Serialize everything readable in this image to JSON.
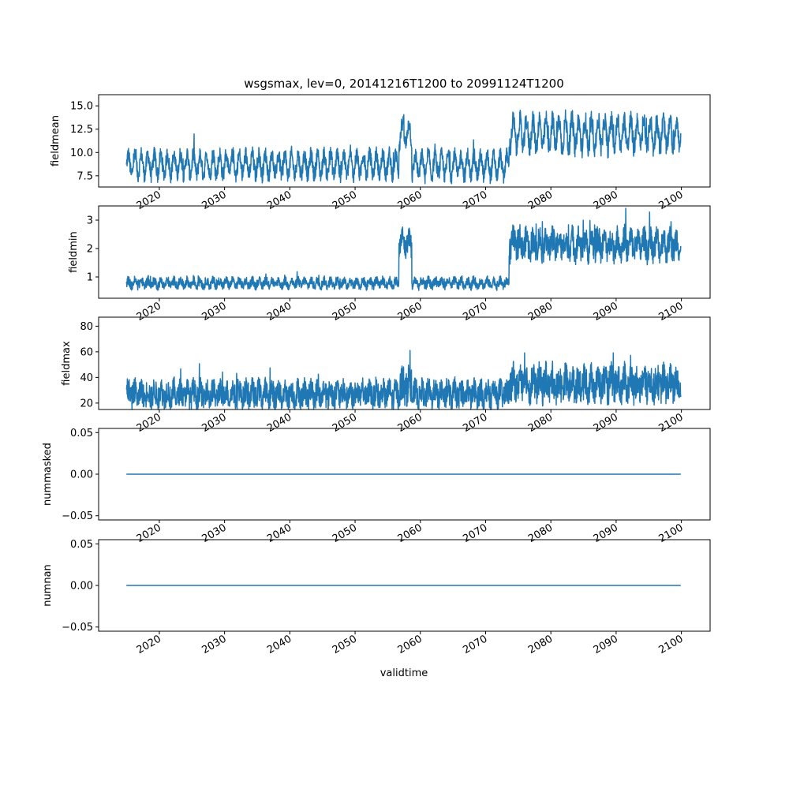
{
  "chart_data": {
    "type": "line",
    "title": "wsgsmax, lev=0, 20141216T1200 to 20991124T1200",
    "xlabel": "validtime",
    "x_tick_labels": [
      "2020",
      "2030",
      "2040",
      "2050",
      "2060",
      "2070",
      "2080",
      "2090",
      "2100"
    ],
    "xlim": [
      2010.7,
      2104.4
    ],
    "x_range": [
      2014.96,
      2099.9
    ],
    "color": "#1f77b4",
    "subplots": [
      {
        "ylabel": "fieldmean",
        "ylim": [
          6.3,
          16.2
        ],
        "y_ticks": [
          7.5,
          10.0,
          12.5,
          15.0
        ],
        "y_tick_labels": [
          "7.5",
          "10.0",
          "12.5",
          "15.0"
        ],
        "segments": [
          {
            "from": 2014.96,
            "to": 2056.7,
            "base": 8.7,
            "amp": 1.1,
            "noise": 0.55
          },
          {
            "from": 2056.7,
            "to": 2058.7,
            "base": 12.0,
            "amp": 1.2,
            "noise": 0.6
          },
          {
            "from": 2058.7,
            "to": 2073.6,
            "base": 8.6,
            "amp": 1.1,
            "noise": 0.55
          },
          {
            "from": 2073.6,
            "to": 2099.9,
            "base": 12.0,
            "amp": 1.5,
            "noise": 0.7
          }
        ]
      },
      {
        "ylabel": "fieldmin",
        "ylim": [
          0.25,
          3.5
        ],
        "y_ticks": [
          1,
          2,
          3
        ],
        "y_tick_labels": [
          "1",
          "2",
          "3"
        ],
        "segments": [
          {
            "from": 2014.96,
            "to": 2056.7,
            "base": 0.78,
            "amp": 0.1,
            "noise": 0.1
          },
          {
            "from": 2056.7,
            "to": 2058.7,
            "base": 2.2,
            "amp": 0.25,
            "noise": 0.25
          },
          {
            "from": 2058.7,
            "to": 2073.6,
            "base": 0.78,
            "amp": 0.1,
            "noise": 0.1
          },
          {
            "from": 2073.6,
            "to": 2099.9,
            "base": 2.15,
            "amp": 0.25,
            "noise": 0.3
          }
        ]
      },
      {
        "ylabel": "fieldmax",
        "ylim": [
          15,
          87
        ],
        "y_ticks": [
          20,
          40,
          60,
          80
        ],
        "y_tick_labels": [
          "20",
          "40",
          "60",
          "80"
        ],
        "segments": [
          {
            "from": 2014.96,
            "to": 2056.7,
            "base": 27,
            "amp": 4,
            "noise": 6
          },
          {
            "from": 2056.7,
            "to": 2058.7,
            "base": 33,
            "amp": 5,
            "noise": 9
          },
          {
            "from": 2058.7,
            "to": 2073.6,
            "base": 27,
            "amp": 4,
            "noise": 6
          },
          {
            "from": 2073.6,
            "to": 2099.9,
            "base": 35,
            "amp": 5,
            "noise": 8
          }
        ]
      },
      {
        "ylabel": "nummasked",
        "ylim": [
          -0.055,
          0.055
        ],
        "y_ticks": [
          -0.05,
          0.0,
          0.05
        ],
        "y_tick_labels": [
          "−0.05",
          "0.00",
          "0.05"
        ],
        "constant": 0.0
      },
      {
        "ylabel": "numnan",
        "ylim": [
          -0.055,
          0.055
        ],
        "y_ticks": [
          -0.05,
          0.0,
          0.05
        ],
        "y_tick_labels": [
          "−0.05",
          "0.00",
          "0.05"
        ],
        "constant": 0.0
      }
    ]
  }
}
